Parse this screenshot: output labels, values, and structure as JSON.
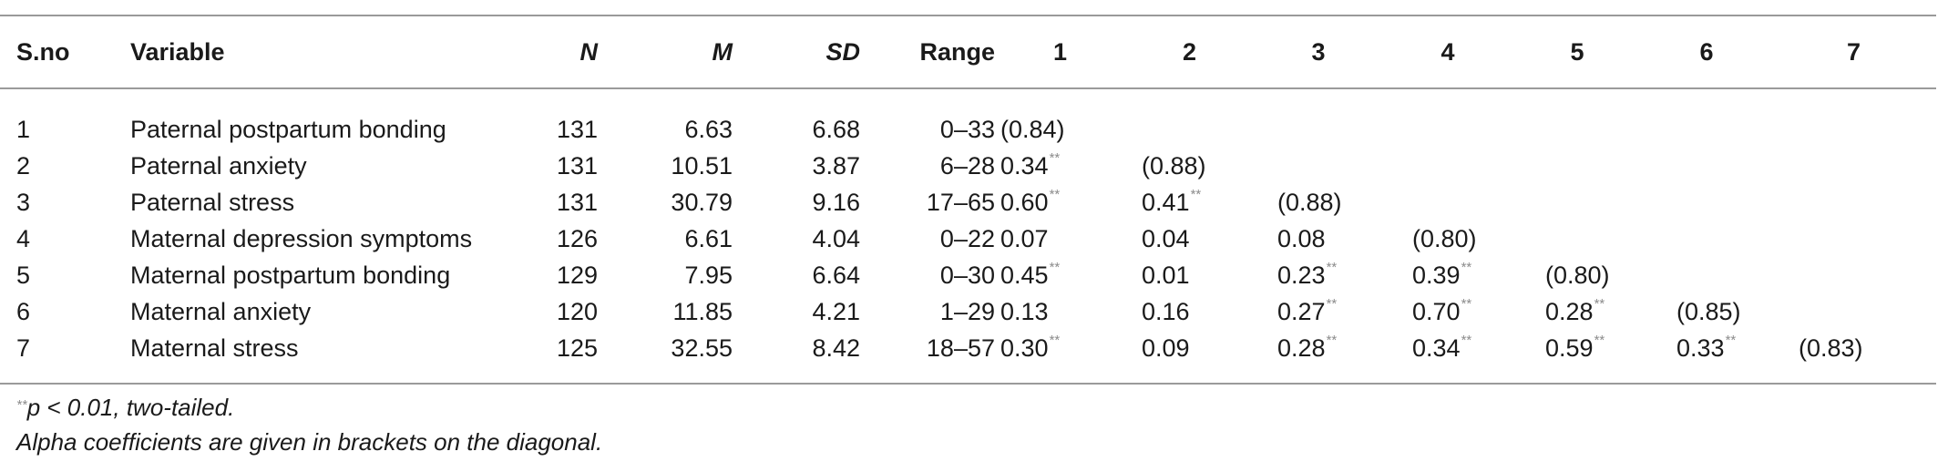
{
  "table": {
    "headers": {
      "sno": "S.no",
      "variable": "Variable",
      "n": "N",
      "m": "M",
      "sd": "SD",
      "range": "Range",
      "c1": "1",
      "c2": "2",
      "c3": "3",
      "c4": "4",
      "c5": "5",
      "c6": "6",
      "c7": "7"
    },
    "rows": [
      {
        "sno": "1",
        "variable": "Paternal postpartum bonding",
        "n": "131",
        "m": "6.63",
        "sd": "6.68",
        "range": "0–33",
        "corr": [
          {
            "v": "(0.84)",
            "s": ""
          },
          {
            "v": "",
            "s": ""
          },
          {
            "v": "",
            "s": ""
          },
          {
            "v": "",
            "s": ""
          },
          {
            "v": "",
            "s": ""
          },
          {
            "v": "",
            "s": ""
          },
          {
            "v": "",
            "s": ""
          }
        ]
      },
      {
        "sno": "2",
        "variable": "Paternal anxiety",
        "n": "131",
        "m": "10.51",
        "sd": "3.87",
        "range": "6–28",
        "corr": [
          {
            "v": "0.34",
            "s": "**"
          },
          {
            "v": "(0.88)",
            "s": ""
          },
          {
            "v": "",
            "s": ""
          },
          {
            "v": "",
            "s": ""
          },
          {
            "v": "",
            "s": ""
          },
          {
            "v": "",
            "s": ""
          },
          {
            "v": "",
            "s": ""
          }
        ]
      },
      {
        "sno": "3",
        "variable": "Paternal stress",
        "n": "131",
        "m": "30.79",
        "sd": "9.16",
        "range": "17–65",
        "corr": [
          {
            "v": "0.60",
            "s": "**"
          },
          {
            "v": "0.41",
            "s": "**"
          },
          {
            "v": "(0.88)",
            "s": ""
          },
          {
            "v": "",
            "s": ""
          },
          {
            "v": "",
            "s": ""
          },
          {
            "v": "",
            "s": ""
          },
          {
            "v": "",
            "s": ""
          }
        ]
      },
      {
        "sno": "4",
        "variable": "Maternal depression symptoms",
        "n": "126",
        "m": "6.61",
        "sd": "4.04",
        "range": "0–22",
        "corr": [
          {
            "v": "0.07",
            "s": ""
          },
          {
            "v": "0.04",
            "s": ""
          },
          {
            "v": "0.08",
            "s": ""
          },
          {
            "v": "(0.80)",
            "s": ""
          },
          {
            "v": "",
            "s": ""
          },
          {
            "v": "",
            "s": ""
          },
          {
            "v": "",
            "s": ""
          }
        ]
      },
      {
        "sno": "5",
        "variable": "Maternal postpartum bonding",
        "n": "129",
        "m": "7.95",
        "sd": "6.64",
        "range": "0–30",
        "corr": [
          {
            "v": "0.45",
            "s": "**"
          },
          {
            "v": "0.01",
            "s": ""
          },
          {
            "v": "0.23",
            "s": "**"
          },
          {
            "v": "0.39",
            "s": "**"
          },
          {
            "v": "(0.80)",
            "s": ""
          },
          {
            "v": "",
            "s": ""
          },
          {
            "v": "",
            "s": ""
          }
        ]
      },
      {
        "sno": "6",
        "variable": "Maternal anxiety",
        "n": "120",
        "m": "11.85",
        "sd": "4.21",
        "range": "1–29",
        "corr": [
          {
            "v": "0.13",
            "s": ""
          },
          {
            "v": "0.16",
            "s": ""
          },
          {
            "v": "0.27",
            "s": "**"
          },
          {
            "v": "0.70",
            "s": "**"
          },
          {
            "v": "0.28",
            "s": "**"
          },
          {
            "v": "(0.85)",
            "s": ""
          },
          {
            "v": "",
            "s": ""
          }
        ]
      },
      {
        "sno": "7",
        "variable": "Maternal stress",
        "n": "125",
        "m": "32.55",
        "sd": "8.42",
        "range": "18–57",
        "corr": [
          {
            "v": "0.30",
            "s": "**"
          },
          {
            "v": "0.09",
            "s": ""
          },
          {
            "v": "0.28",
            "s": "**"
          },
          {
            "v": "0.34",
            "s": "**"
          },
          {
            "v": "0.59",
            "s": "**"
          },
          {
            "v": "0.33",
            "s": "**"
          },
          {
            "v": "(0.83)",
            "s": ""
          }
        ]
      }
    ]
  },
  "notes": {
    "sig_marker": "**",
    "sig_text": "p < 0.01, two-tailed.",
    "alpha_text": "Alpha coefficients are given in brackets on the diagonal."
  }
}
